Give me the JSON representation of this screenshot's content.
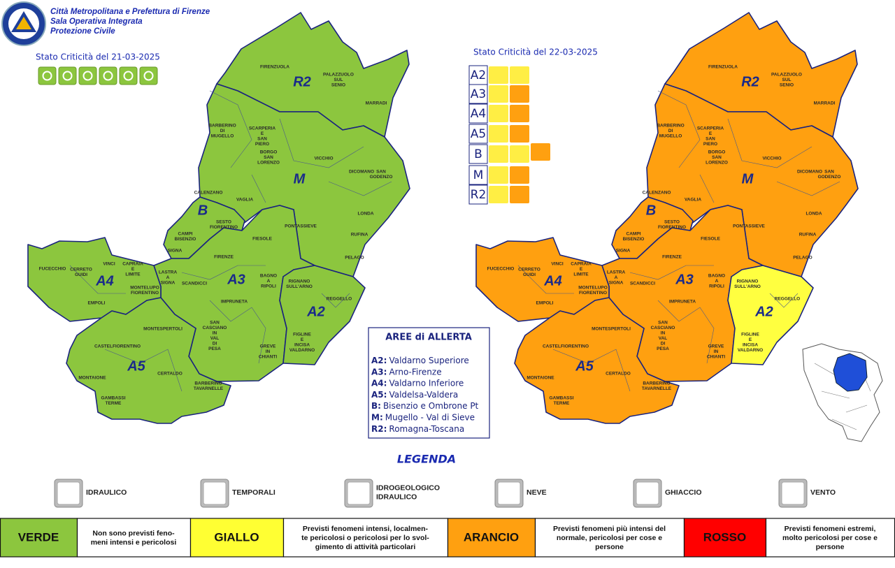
{
  "header": {
    "lines": [
      "Città Metropolitana e Prefettura di Firenze",
      "Sala Operativa Integrata",
      "Protezione Civile"
    ]
  },
  "municipalities": [
    [
      "FIRENZUOLA"
    ],
    [
      "PALAZZUOLO",
      "SUL",
      "SENIO"
    ],
    [
      "MARRADI"
    ],
    [
      "BARBERINO",
      "DI",
      "MUGELLO"
    ],
    [
      "SCARPERIA",
      "E",
      "SAN",
      "PIERO"
    ],
    [
      "BORGO",
      "SAN",
      "LORENZO"
    ],
    [
      "VICCHIO"
    ],
    [
      "DICOMANO"
    ],
    [
      "SAN",
      "GODENZO"
    ],
    [
      "CALENZANO"
    ],
    [
      "VAGLIA"
    ],
    [
      "SESTO",
      "FIORENTINO"
    ],
    [
      "CAMPI",
      "BISENZIO"
    ],
    [
      "SIGNA"
    ],
    [
      "PONTASSIEVE"
    ],
    [
      "LONDA"
    ],
    [
      "RUFINA"
    ],
    [
      "FIESOLE"
    ],
    [
      "PELAGO"
    ],
    [
      "FIRENZE"
    ],
    [
      "LASTRA",
      "A",
      "SIGNA"
    ],
    [
      "SCANDICCI"
    ],
    [
      "BAGNO",
      "A",
      "RIPOLI"
    ],
    [
      "RIGNANO",
      "SULL'ARNO"
    ],
    [
      "REGGELLO"
    ],
    [
      "IMPRUNETA"
    ],
    [
      "FIGLINE",
      "E",
      "INCISA",
      "VALDARNO"
    ],
    [
      "FUCECCHIO"
    ],
    [
      "CERRETO",
      "GUIDI"
    ],
    [
      "VINCI"
    ],
    [
      "CAPRAIA",
      "E",
      "LIMITE"
    ],
    [
      "MONTELUPO",
      "FIORENTINO"
    ],
    [
      "EMPOLI"
    ],
    [
      "MONTESPERTOLI"
    ],
    [
      "SAN",
      "CASCIANO",
      "IN",
      "VAL",
      "DI",
      "PESA"
    ],
    [
      "GREVE",
      "IN",
      "CHIANTI"
    ],
    [
      "CASTELFIORENTINO"
    ],
    [
      "MONTAIONE"
    ],
    [
      "CERTALDO"
    ],
    [
      "GAMBASSI",
      "TERME"
    ],
    [
      "BARBERINO",
      "TAVARNELLE"
    ]
  ],
  "maps": [
    {
      "date_label": "Stato Criticità del 21-03-2025",
      "zones": [
        {
          "code": "R2",
          "color": "#8cc63e"
        },
        {
          "code": "M",
          "color": "#8cc63e"
        },
        {
          "code": "B",
          "color": "#8cc63e"
        },
        {
          "code": "A3",
          "color": "#8cc63e"
        },
        {
          "code": "A2",
          "color": "#8cc63e"
        },
        {
          "code": "A4",
          "color": "#8cc63e"
        },
        {
          "code": "A5",
          "color": "#8cc63e"
        }
      ]
    },
    {
      "date_label": "Stato Criticità del 22-03-2025",
      "zones": [
        {
          "code": "R2",
          "color": "#ffa010"
        },
        {
          "code": "M",
          "color": "#ffa010"
        },
        {
          "code": "B",
          "color": "#ffa010"
        },
        {
          "code": "A3",
          "color": "#ffa010"
        },
        {
          "code": "A2",
          "color": "#ffff40"
        },
        {
          "code": "A4",
          "color": "#ffa010"
        },
        {
          "code": "A5",
          "color": "#ffa010"
        }
      ],
      "zone_table": [
        "A2",
        "A3",
        "A4",
        "A5",
        "B",
        "M",
        "R2"
      ]
    }
  ],
  "areas": {
    "title": "AREE di ALLERTA",
    "items": [
      {
        "code": "A2:",
        "name": "Valdarno Superiore"
      },
      {
        "code": "A3:",
        "name": "Arno-Firenze"
      },
      {
        "code": "A4:",
        "name": "Valdarno Inferiore"
      },
      {
        "code": "A5:",
        "name": "Valdelsa-Valdera"
      },
      {
        "code": "B:",
        "name": "Bisenzio e Ombrone Pt"
      },
      {
        "code": "M:",
        "name": "Mugello - Val di Sieve"
      },
      {
        "code": "R2:",
        "name": "Romagna-Toscana"
      }
    ]
  },
  "legend": {
    "title": "LEGENDA",
    "items": [
      {
        "label": [
          "IDRAULICO"
        ]
      },
      {
        "label": [
          "TEMPORALI"
        ]
      },
      {
        "label": [
          "IDROGEOLOGICO",
          "IDRAULICO"
        ]
      },
      {
        "label": [
          "NEVE"
        ]
      },
      {
        "label": [
          "GHIACCIO"
        ]
      },
      {
        "label": [
          "VENTO"
        ]
      }
    ]
  },
  "levels": [
    {
      "name": "VERDE",
      "color": "#8cc63e",
      "description": [
        "Non sono previsti feno-",
        "meni intensi e pericolosi"
      ]
    },
    {
      "name": "GIALLO",
      "color": "#ffff33",
      "description": [
        "Previsti fenomeni intensi, localmen-",
        "te pericolosi o pericolosi per lo svol-",
        "gimento di attività particolari"
      ]
    },
    {
      "name": "ARANCIO",
      "color": "#ffa010",
      "description": [
        "Previsti fenomeni più intensi del",
        "normale, pericolosi per cose e",
        "persone"
      ]
    },
    {
      "name": "ROSSO",
      "color": "#ff0000",
      "description": [
        "Previsti fenomeni estremi,",
        "molto pericolosi per cose e",
        "persone"
      ]
    }
  ]
}
